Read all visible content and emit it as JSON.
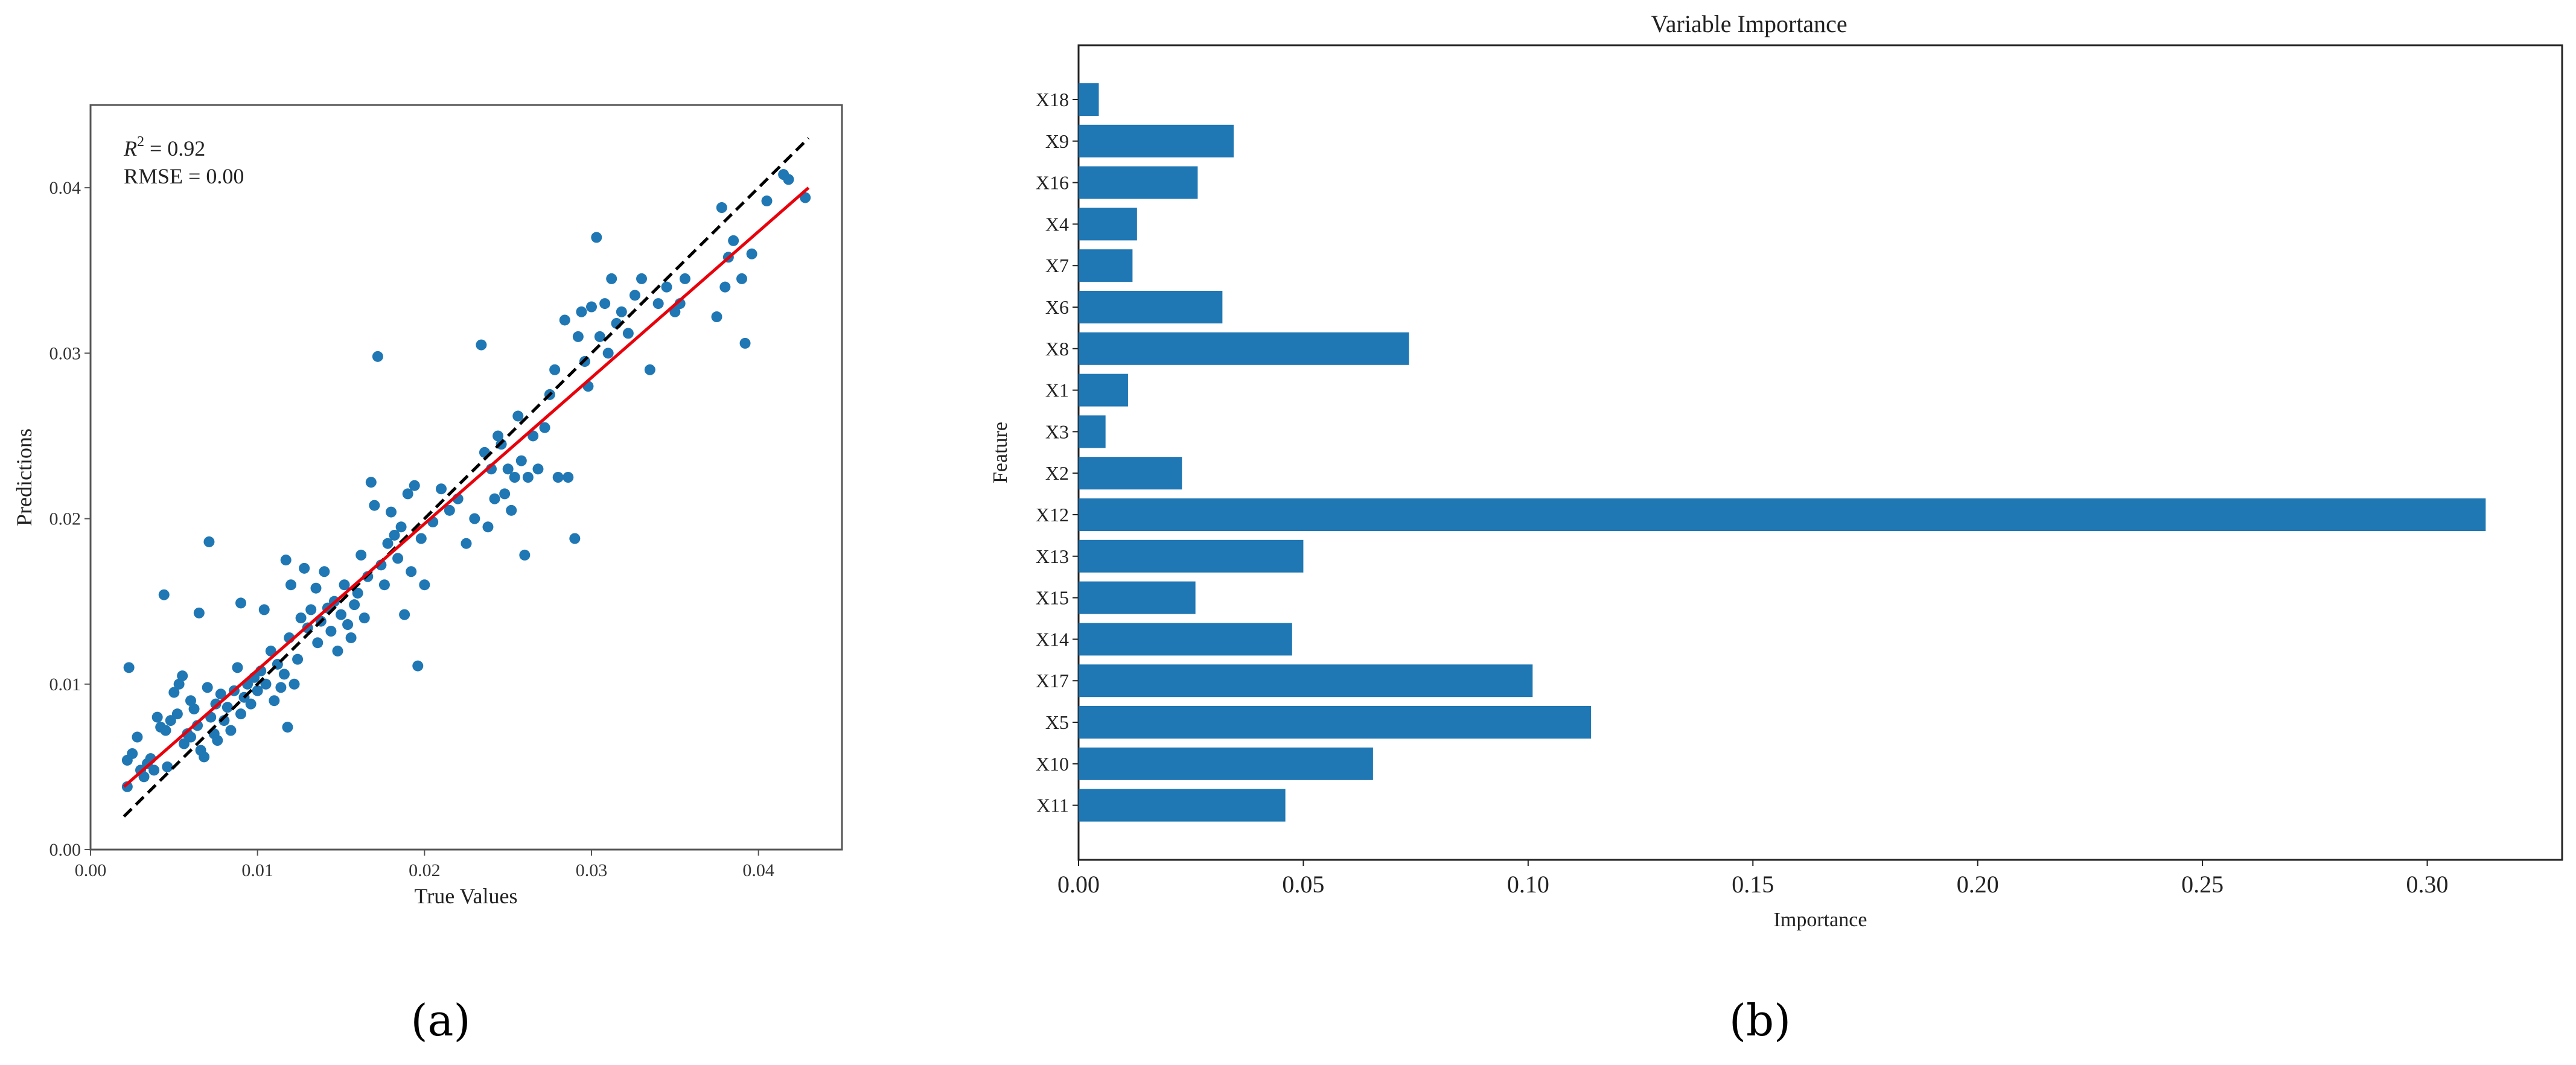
{
  "chart_data": [
    {
      "panel_label": "(a)",
      "type": "scatter",
      "title": "",
      "xlabel": "True Values",
      "ylabel": "Predictions",
      "xlim": [
        0.0,
        0.045
      ],
      "ylim": [
        0.0,
        0.045
      ],
      "xticks": [
        0.0,
        0.01,
        0.02,
        0.03,
        0.04
      ],
      "yticks": [
        0.0,
        0.01,
        0.02,
        0.03,
        0.04
      ],
      "xtick_labels": [
        "0.00",
        "0.01",
        "0.02",
        "0.03",
        "0.04"
      ],
      "ytick_labels": [
        "0.00",
        "0.01",
        "0.02",
        "0.03",
        "0.04"
      ],
      "grid": false,
      "annotation_r2": {
        "label": "R",
        "sup": "2",
        "rest": " = 0.92"
      },
      "annotation_rmse": "RMSE = 0.00",
      "point_color": "#1f77b4",
      "lines": [
        {
          "name": "identity",
          "style": "dashed",
          "color": "#000000",
          "x": [
            0.002,
            0.043
          ],
          "y": [
            0.002,
            0.043
          ]
        },
        {
          "name": "fit",
          "style": "solid",
          "color": "#e8000b",
          "x": [
            0.002,
            0.043
          ],
          "y": [
            0.0038,
            0.04
          ]
        }
      ],
      "points": [
        [
          0.0022,
          0.0054
        ],
        [
          0.0023,
          0.011
        ],
        [
          0.0025,
          0.0058
        ],
        [
          0.0022,
          0.0038
        ],
        [
          0.0028,
          0.0068
        ],
        [
          0.003,
          0.0048
        ],
        [
          0.0032,
          0.0044
        ],
        [
          0.0034,
          0.0052
        ],
        [
          0.0036,
          0.0055
        ],
        [
          0.0038,
          0.0048
        ],
        [
          0.004,
          0.008
        ],
        [
          0.0042,
          0.0074
        ],
        [
          0.0044,
          0.0154
        ],
        [
          0.0045,
          0.0072
        ],
        [
          0.0046,
          0.005
        ],
        [
          0.0048,
          0.0078
        ],
        [
          0.005,
          0.0095
        ],
        [
          0.0052,
          0.0082
        ],
        [
          0.0053,
          0.01
        ],
        [
          0.0055,
          0.0105
        ],
        [
          0.0056,
          0.0064
        ],
        [
          0.0058,
          0.007
        ],
        [
          0.006,
          0.0068
        ],
        [
          0.006,
          0.009
        ],
        [
          0.0062,
          0.0085
        ],
        [
          0.0064,
          0.0075
        ],
        [
          0.0065,
          0.0143
        ],
        [
          0.0066,
          0.006
        ],
        [
          0.0068,
          0.0056
        ],
        [
          0.007,
          0.0098
        ],
        [
          0.0071,
          0.0186
        ],
        [
          0.0072,
          0.008
        ],
        [
          0.0074,
          0.007
        ],
        [
          0.0075,
          0.0088
        ],
        [
          0.0076,
          0.0066
        ],
        [
          0.0078,
          0.0094
        ],
        [
          0.008,
          0.0078
        ],
        [
          0.0082,
          0.0086
        ],
        [
          0.0084,
          0.0072
        ],
        [
          0.0086,
          0.0096
        ],
        [
          0.0088,
          0.011
        ],
        [
          0.009,
          0.0149
        ],
        [
          0.009,
          0.0082
        ],
        [
          0.0092,
          0.0092
        ],
        [
          0.0094,
          0.01
        ],
        [
          0.0096,
          0.0088
        ],
        [
          0.0098,
          0.0104
        ],
        [
          0.01,
          0.0096
        ],
        [
          0.0102,
          0.0108
        ],
        [
          0.0104,
          0.0145
        ],
        [
          0.0105,
          0.01
        ],
        [
          0.0108,
          0.012
        ],
        [
          0.011,
          0.009
        ],
        [
          0.0112,
          0.0112
        ],
        [
          0.0114,
          0.0098
        ],
        [
          0.0116,
          0.0106
        ],
        [
          0.0117,
          0.0175
        ],
        [
          0.0118,
          0.0074
        ],
        [
          0.0119,
          0.0128
        ],
        [
          0.012,
          0.016
        ],
        [
          0.0122,
          0.01
        ],
        [
          0.0124,
          0.0115
        ],
        [
          0.0126,
          0.014
        ],
        [
          0.0128,
          0.017
        ],
        [
          0.013,
          0.0134
        ],
        [
          0.0132,
          0.0145
        ],
        [
          0.0135,
          0.0158
        ],
        [
          0.0136,
          0.0125
        ],
        [
          0.0138,
          0.0138
        ],
        [
          0.014,
          0.0168
        ],
        [
          0.0142,
          0.0146
        ],
        [
          0.0144,
          0.0132
        ],
        [
          0.0146,
          0.015
        ],
        [
          0.0148,
          0.012
        ],
        [
          0.015,
          0.0142
        ],
        [
          0.0152,
          0.016
        ],
        [
          0.0154,
          0.0136
        ],
        [
          0.0156,
          0.0128
        ],
        [
          0.0158,
          0.0148
        ],
        [
          0.016,
          0.0155
        ],
        [
          0.0162,
          0.0178
        ],
        [
          0.0164,
          0.014
        ],
        [
          0.0166,
          0.0165
        ],
        [
          0.0168,
          0.0222
        ],
        [
          0.017,
          0.0208
        ],
        [
          0.0172,
          0.0298
        ],
        [
          0.0174,
          0.0172
        ],
        [
          0.0176,
          0.016
        ],
        [
          0.0178,
          0.0185
        ],
        [
          0.018,
          0.0204
        ],
        [
          0.0182,
          0.019
        ],
        [
          0.0184,
          0.0176
        ],
        [
          0.0186,
          0.0195
        ],
        [
          0.0188,
          0.0142
        ],
        [
          0.019,
          0.0215
        ],
        [
          0.0192,
          0.0168
        ],
        [
          0.0194,
          0.022
        ],
        [
          0.0196,
          0.0111
        ],
        [
          0.0198,
          0.0188
        ],
        [
          0.02,
          0.016
        ],
        [
          0.0205,
          0.0198
        ],
        [
          0.021,
          0.0218
        ],
        [
          0.0215,
          0.0205
        ],
        [
          0.022,
          0.0212
        ],
        [
          0.0225,
          0.0185
        ],
        [
          0.023,
          0.02
        ],
        [
          0.0234,
          0.0305
        ],
        [
          0.0236,
          0.024
        ],
        [
          0.0238,
          0.0195
        ],
        [
          0.024,
          0.023
        ],
        [
          0.0242,
          0.0212
        ],
        [
          0.0244,
          0.025
        ],
        [
          0.0246,
          0.0245
        ],
        [
          0.0248,
          0.0215
        ],
        [
          0.025,
          0.023
        ],
        [
          0.0252,
          0.0205
        ],
        [
          0.0254,
          0.0225
        ],
        [
          0.0256,
          0.0262
        ],
        [
          0.0258,
          0.0235
        ],
        [
          0.026,
          0.0178
        ],
        [
          0.0262,
          0.0225
        ],
        [
          0.0265,
          0.025
        ],
        [
          0.0268,
          0.023
        ],
        [
          0.0272,
          0.0255
        ],
        [
          0.0275,
          0.0275
        ],
        [
          0.0278,
          0.029
        ],
        [
          0.028,
          0.0225
        ],
        [
          0.0284,
          0.032
        ],
        [
          0.0286,
          0.0225
        ],
        [
          0.029,
          0.0188
        ],
        [
          0.0292,
          0.031
        ],
        [
          0.0294,
          0.0325
        ],
        [
          0.0296,
          0.0295
        ],
        [
          0.0298,
          0.028
        ],
        [
          0.03,
          0.0328
        ],
        [
          0.0303,
          0.037
        ],
        [
          0.0305,
          0.031
        ],
        [
          0.0308,
          0.033
        ],
        [
          0.031,
          0.03
        ],
        [
          0.0312,
          0.0345
        ],
        [
          0.0315,
          0.0318
        ],
        [
          0.0318,
          0.0325
        ],
        [
          0.0322,
          0.0312
        ],
        [
          0.0326,
          0.0335
        ],
        [
          0.033,
          0.0345
        ],
        [
          0.0335,
          0.029
        ],
        [
          0.034,
          0.033
        ],
        [
          0.0345,
          0.034
        ],
        [
          0.035,
          0.0325
        ],
        [
          0.0353,
          0.033
        ],
        [
          0.0356,
          0.0345
        ],
        [
          0.0375,
          0.0322
        ],
        [
          0.0378,
          0.0388
        ],
        [
          0.038,
          0.034
        ],
        [
          0.0382,
          0.0358
        ],
        [
          0.0385,
          0.0368
        ],
        [
          0.039,
          0.0345
        ],
        [
          0.0392,
          0.0306
        ],
        [
          0.0396,
          0.036
        ],
        [
          0.0405,
          0.0392
        ],
        [
          0.0415,
          0.0408
        ],
        [
          0.0418,
          0.0405
        ],
        [
          0.0428,
          0.0394
        ]
      ]
    },
    {
      "panel_label": "(b)",
      "type": "bar",
      "orientation": "horizontal",
      "title": "Variable Importance",
      "xlabel": "Importance",
      "ylabel": "Feature",
      "xlim": [
        0.0,
        0.33
      ],
      "xticks": [
        0.0,
        0.05,
        0.1,
        0.15,
        0.2,
        0.25,
        0.3
      ],
      "xtick_labels": [
        "0.00",
        "0.05",
        "0.10",
        "0.15",
        "0.20",
        "0.25",
        "0.30"
      ],
      "grid": false,
      "bar_color": "#1f77b4",
      "categories": [
        "X18",
        "X9",
        "X16",
        "X4",
        "X7",
        "X6",
        "X8",
        "X1",
        "X3",
        "X2",
        "X12",
        "X13",
        "X15",
        "X14",
        "X17",
        "X5",
        "X10",
        "X11"
      ],
      "values": [
        0.0045,
        0.0345,
        0.0265,
        0.013,
        0.012,
        0.032,
        0.0735,
        0.011,
        0.006,
        0.023,
        0.313,
        0.05,
        0.026,
        0.0475,
        0.101,
        0.114,
        0.0655,
        0.046
      ]
    }
  ]
}
